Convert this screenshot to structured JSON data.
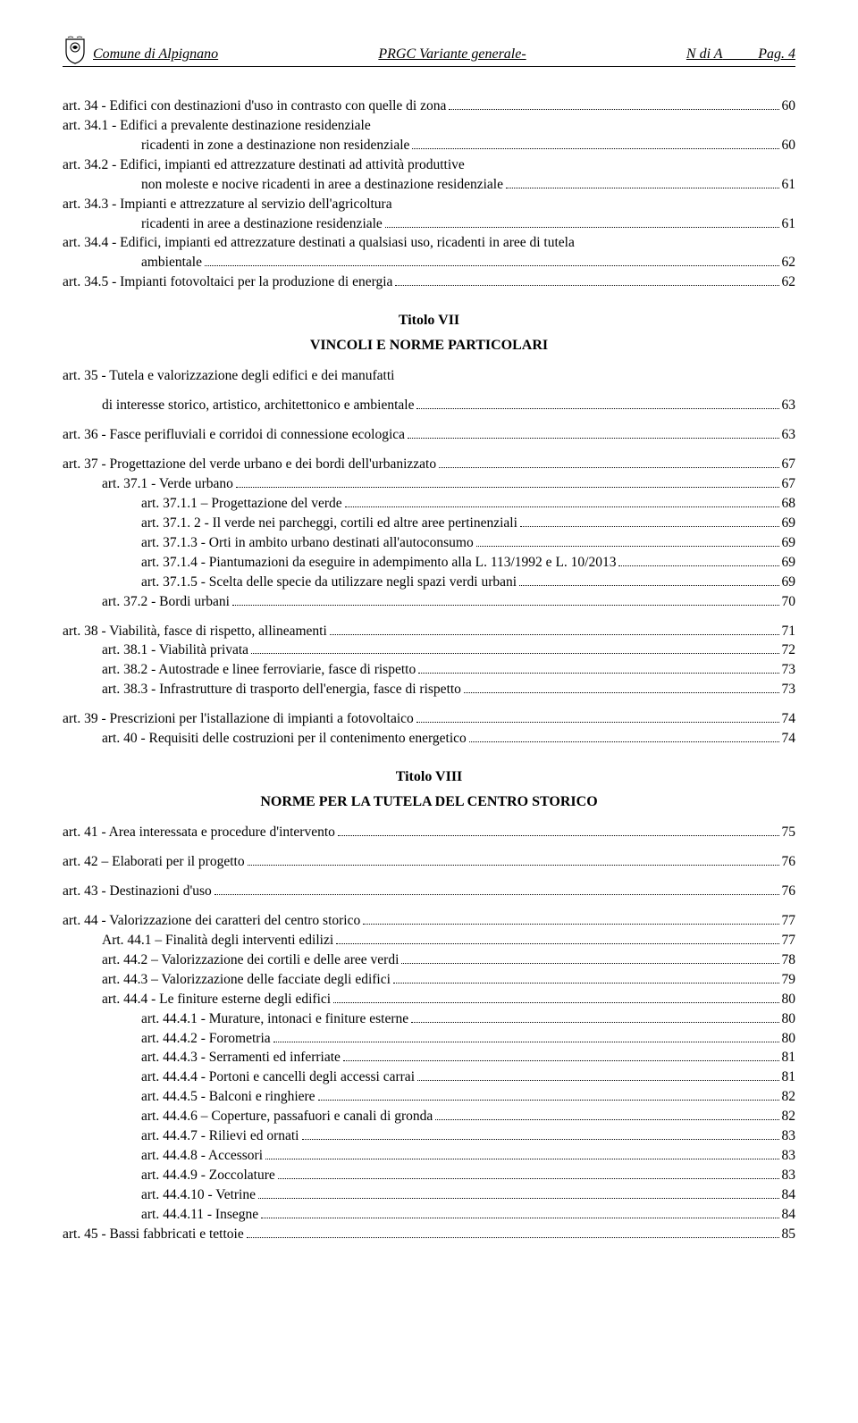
{
  "header": {
    "left": "Comune di Alpignano",
    "center": "PRGC  Variante generale-",
    "right_label": "N di A",
    "page_label": "Pag.",
    "page_num": "4"
  },
  "sections": [
    {
      "lines": [
        {
          "indent": 0,
          "label": "art. 34 - Edifici con destinazioni d'uso in contrasto con quelle di zona",
          "page": "60"
        },
        {
          "indent": 0,
          "label": "art. 34.1 - Edifici a prevalente destinazione residenziale",
          "nopage": true
        },
        {
          "indent": "body",
          "label": "ricadenti in zone a destinazione non residenziale",
          "page": "60"
        },
        {
          "indent": 0,
          "label": "art. 34.2 - Edifici, impianti ed attrezzature destinati ad attività produttive",
          "nopage": true
        },
        {
          "indent": "body",
          "label": "non moleste e nocive ricadenti in aree a destinazione residenziale",
          "page": "61"
        },
        {
          "indent": 0,
          "label": "art. 34.3 - Impianti e attrezzature al servizio dell'agricoltura",
          "nopage": true
        },
        {
          "indent": "body",
          "label": "ricadenti in aree a destinazione residenziale",
          "page": "61"
        },
        {
          "indent": 0,
          "label": "art. 34.4 - Edifici, impianti ed attrezzature destinati a qualsiasi uso, ricadenti in aree di tutela",
          "nopage": true
        },
        {
          "indent": "body",
          "label": "ambientale",
          "page": "62"
        },
        {
          "indent": 0,
          "label": "art. 34.5 - Impianti fotovoltaici per la produzione di energia",
          "page": "62"
        }
      ]
    },
    {
      "title": "Titolo VII",
      "subtitle": "VINCOLI E NORME PARTICOLARI",
      "lines": [
        {
          "indent": 0,
          "label": " art. 35 - Tutela e valorizzazione degli edifici e dei manufatti",
          "nopage": true,
          "gap_after": true
        },
        {
          "indent": "sub",
          "label": "di interesse storico, artistico, architettonico e ambientale",
          "page": "63",
          "gap_after": true
        },
        {
          "indent": 0,
          "label": "art. 36 - Fasce perifluviali e corridoi di connessione ecologica",
          "page": "63",
          "gap_after": true
        },
        {
          "indent": 0,
          "label": "art. 37 - Progettazione del verde urbano e dei bordi dell'urbanizzato",
          "page": "67"
        },
        {
          "indent": 1,
          "label": "art. 37.1 - Verde urbano",
          "page": "67"
        },
        {
          "indent": 2,
          "label": "art. 37.1.1 – Progettazione del verde",
          "page": "68"
        },
        {
          "indent": 2,
          "label": "art. 37.1. 2 - Il verde nei parcheggi, cortili ed altre aree pertinenziali",
          "page": "69"
        },
        {
          "indent": 2,
          "label": "art. 37.1.3  -  Orti in ambito urbano destinati all'autoconsumo",
          "page": "69"
        },
        {
          "indent": 2,
          "label": "art. 37.1.4 - Piantumazioni da eseguire in adempimento alla L. 113/1992 e L. 10/2013",
          "page": "69"
        },
        {
          "indent": 2,
          "label": "art. 37.1.5  -  Scelta delle specie da utilizzare negli spazi verdi urbani",
          "page": "69"
        },
        {
          "indent": 1,
          "label": "art. 37.2 - Bordi urbani",
          "page": "70",
          "gap_after": true
        },
        {
          "indent": 0,
          "label": "art. 38 - Viabilità, fasce di rispetto, allineamenti",
          "page": "71"
        },
        {
          "indent": 1,
          "label": "art. 38.1 - Viabilità privata",
          "page": "72"
        },
        {
          "indent": 1,
          "label": "art. 38.2 - Autostrade e linee ferroviarie, fasce di rispetto",
          "page": "73"
        },
        {
          "indent": 1,
          "label": "art. 38.3 - Infrastrutture di trasporto dell'energia, fasce di rispetto",
          "page": "73",
          "gap_after": true
        },
        {
          "indent": 0,
          "label": "art. 39 -  Prescrizioni per l'istallazione di impianti a fotovoltaico",
          "page": "74"
        },
        {
          "indent": 1,
          "label": "art. 40 - Requisiti delle costruzioni per il contenimento energetico",
          "page": "74"
        }
      ]
    },
    {
      "title": "Titolo VIII",
      "subtitle": "NORME PER LA TUTELA DEL CENTRO STORICO",
      "lines": [
        {
          "indent": 0,
          "label": "art. 41 - Area interessata e procedure d'intervento",
          "page": "75",
          "gap_after": true
        },
        {
          "indent": 0,
          "label": "art. 42 – Elaborati per il progetto",
          "page": "76",
          "gap_after": true
        },
        {
          "indent": 0,
          "label": "art. 43 - Destinazioni d'uso",
          "page": "76",
          "gap_after": true
        },
        {
          "indent": 0,
          "label": "art. 44 - Valorizzazione dei caratteri del centro storico",
          "page": "77"
        },
        {
          "indent": 1,
          "label": "Art. 44.1 – Finalità degli interventi edilizi",
          "page": "77"
        },
        {
          "indent": 1,
          "label": "art. 44.2 – Valorizzazione dei cortili e delle aree verdi",
          "page": "78"
        },
        {
          "indent": 1,
          "label": "art. 44.3 – Valorizzazione delle  facciate degli edifici",
          "page": "79"
        },
        {
          "indent": 1,
          "label": "art. 44.4 - Le finiture esterne degli edifici",
          "page": "80"
        },
        {
          "indent": 2,
          "label": "art. 44.4.1 - Murature, intonaci e finiture esterne",
          "page": "80"
        },
        {
          "indent": 2,
          "label": "art. 44.4.2 - Forometria",
          "page": "80"
        },
        {
          "indent": 2,
          "label": "art. 44.4.3  -  Serramenti ed inferriate",
          "page": "81"
        },
        {
          "indent": 2,
          "label": "art. 44.4.4 - Portoni e cancelli degli accessi carrai",
          "page": "81"
        },
        {
          "indent": 2,
          "label": "art. 44.4.5 - Balconi e ringhiere",
          "page": "82"
        },
        {
          "indent": 2,
          "label": "art. 44.4.6 – Coperture, passafuori e canali di gronda",
          "page": "82"
        },
        {
          "indent": 2,
          "label": "art. 44.4.7 - Rilievi ed ornati",
          "page": "83"
        },
        {
          "indent": 2,
          "label": "art. 44.4.8  - Accessori",
          "page": "83"
        },
        {
          "indent": 2,
          "label": "art. 44.4.9  - Zoccolature",
          "page": "83"
        },
        {
          "indent": 2,
          "label": "art. 44.4.10 - Vetrine",
          "page": "84"
        },
        {
          "indent": 2,
          "label": "art. 44.4.11  - Insegne",
          "page": "84"
        },
        {
          "indent": 0,
          "label": "art. 45 - Bassi fabbricati e tettoie",
          "page": "85"
        }
      ]
    }
  ]
}
